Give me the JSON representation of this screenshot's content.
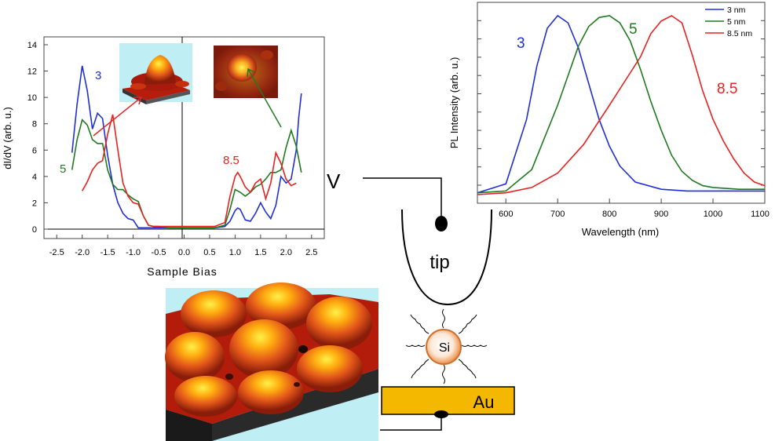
{
  "colors": {
    "blue": "#1f2fd6",
    "green": "#1f7a1f",
    "red": "#e8211f",
    "gold": "#f5b800",
    "afm_bg": "#bfeef5"
  },
  "sts": {
    "ylabel": "dI/dV (arb. u.)",
    "xlabel": "Sample Bias",
    "yticks": [
      "0",
      "2",
      "4",
      "6",
      "8",
      "10",
      "12",
      "14"
    ],
    "xticks": [
      "-2.5",
      "-2.0",
      "-1.5",
      "-1.0",
      "-0.5",
      "0.0",
      "0.5",
      "1.0",
      "1.5",
      "2.0",
      "2.5"
    ],
    "labels": {
      "blue": "3",
      "green": "5",
      "red": "8.5"
    },
    "inset_left_icon": "afm-3d-dot-icon",
    "inset_right_icon": "afm-2d-dot-icon"
  },
  "pl": {
    "ylabel": "PL Intensity (arb. u.)",
    "xlabel": "Wavelength (nm)",
    "xticks": [
      "600",
      "700",
      "800",
      "900",
      "1000",
      "1100"
    ],
    "legend": [
      "3 nm",
      "5 nm",
      "8.5 nm"
    ],
    "labels": {
      "blue": "3",
      "green": "5",
      "red": "8.5"
    }
  },
  "schematic": {
    "v_label": "V",
    "tip_label": "tip",
    "si_label": "Si",
    "au_label": "Au"
  },
  "chart_data": [
    {
      "type": "line",
      "title": "",
      "xlabel": "Sample Bias",
      "ylabel": "dI/dV (arb. u.)",
      "xlim": [
        -2.75,
        2.75
      ],
      "ylim": [
        0,
        14
      ],
      "series": [
        {
          "name": "3",
          "color": "#1f2fd6",
          "x": [
            -2.2,
            -2.1,
            -2.0,
            -1.9,
            -1.8,
            -1.7,
            -1.6,
            -1.5,
            -1.4,
            -1.3,
            -1.2,
            -1.1,
            -1.0,
            -0.9,
            -0.8,
            -0.7,
            -0.6,
            -0.5,
            -0.3,
            0,
            0.3,
            0.6,
            0.8,
            0.9,
            1.0,
            1.05,
            1.1,
            1.2,
            1.3,
            1.4,
            1.5,
            1.6,
            1.7,
            1.8,
            1.9,
            2.0,
            2.1,
            2.2,
            2.25,
            2.3
          ],
          "y": [
            5.8,
            9.5,
            12.4,
            10.5,
            7.6,
            8.8,
            8.4,
            5.6,
            3.4,
            2.0,
            1.2,
            0.8,
            0.7,
            0.1,
            0.1,
            0.1,
            0.1,
            0.1,
            0.1,
            0.1,
            0.1,
            0.1,
            0.2,
            0.6,
            1.4,
            1.6,
            1.5,
            0.7,
            0.6,
            1.2,
            2.0,
            1.3,
            0.8,
            1.8,
            4.0,
            3.5,
            3.8,
            6.0,
            8.5,
            10.3
          ]
        },
        {
          "name": "5",
          "color": "#1f7a1f",
          "x": [
            -2.2,
            -2.1,
            -2.0,
            -1.9,
            -1.8,
            -1.7,
            -1.6,
            -1.5,
            -1.4,
            -1.3,
            -1.2,
            -1.1,
            -1.0,
            -0.9,
            -0.8,
            -0.7,
            -0.6,
            -0.5,
            -0.3,
            0,
            0.3,
            0.6,
            0.8,
            0.9,
            1.0,
            1.1,
            1.2,
            1.3,
            1.4,
            1.5,
            1.6,
            1.7,
            1.8,
            1.9,
            2.0,
            2.1,
            2.2,
            2.3
          ],
          "y": [
            4.5,
            6.8,
            8.3,
            7.9,
            6.8,
            6.5,
            6.5,
            4.5,
            3.4,
            3.0,
            3.0,
            2.6,
            2.3,
            2.1,
            1.0,
            0.3,
            0.2,
            0.2,
            0.1,
            0.1,
            0.1,
            0.1,
            0.3,
            1.5,
            3.0,
            2.8,
            2.5,
            2.8,
            3.2,
            3.4,
            3.8,
            4.3,
            4.3,
            4.5,
            6.2,
            7.5,
            6.3,
            4.3
          ]
        },
        {
          "name": "8.5",
          "color": "#e8211f",
          "x": [
            -2.0,
            -1.9,
            -1.8,
            -1.7,
            -1.6,
            -1.5,
            -1.4,
            -1.3,
            -1.2,
            -1.1,
            -1.0,
            -0.9,
            -0.8,
            -0.7,
            -0.6,
            -0.5,
            -0.3,
            0,
            0.3,
            0.6,
            0.8,
            0.9,
            1.0,
            1.05,
            1.1,
            1.2,
            1.3,
            1.4,
            1.5,
            1.6,
            1.7,
            1.8,
            1.9,
            2.0,
            2.1,
            2.2
          ],
          "y": [
            2.9,
            3.6,
            4.5,
            5.0,
            5.2,
            7.2,
            8.7,
            6.0,
            3.5,
            2.5,
            2.0,
            1.9,
            1.0,
            0.3,
            0.2,
            0.2,
            0.2,
            0.2,
            0.2,
            0.2,
            0.5,
            2.5,
            4.0,
            4.3,
            4.0,
            3.2,
            2.8,
            3.5,
            3.8,
            2.3,
            3.5,
            5.8,
            5.0,
            3.8,
            3.3,
            3.5
          ]
        }
      ]
    },
    {
      "type": "line",
      "title": "",
      "xlabel": "Wavelength (nm)",
      "ylabel": "PL Intensity (arb. u.)",
      "xlim": [
        545,
        1100
      ],
      "ylim": [
        0,
        1
      ],
      "legend": "top-right",
      "series": [
        {
          "name": "3 nm",
          "color": "#1f2fd6",
          "x": [
            545,
            600,
            640,
            660,
            680,
            700,
            720,
            740,
            760,
            780,
            800,
            820,
            850,
            900,
            950,
            1000,
            1050,
            1100
          ],
          "y": [
            0.01,
            0.06,
            0.42,
            0.72,
            0.93,
            1.0,
            0.96,
            0.82,
            0.62,
            0.42,
            0.27,
            0.16,
            0.07,
            0.03,
            0.02,
            0.02,
            0.02,
            0.02
          ]
        },
        {
          "name": "5 nm",
          "color": "#1f7a1f",
          "x": [
            545,
            600,
            650,
            700,
            740,
            760,
            780,
            800,
            820,
            840,
            860,
            880,
            900,
            920,
            940,
            960,
            980,
            1000,
            1050,
            1100
          ],
          "y": [
            0.01,
            0.02,
            0.14,
            0.5,
            0.83,
            0.94,
            0.99,
            1.0,
            0.96,
            0.86,
            0.7,
            0.52,
            0.36,
            0.22,
            0.13,
            0.08,
            0.05,
            0.04,
            0.03,
            0.03
          ]
        },
        {
          "name": "8.5 nm",
          "color": "#e8211f",
          "x": [
            545,
            600,
            650,
            700,
            750,
            800,
            840,
            860,
            880,
            900,
            920,
            940,
            960,
            980,
            1000,
            1020,
            1040,
            1060,
            1080,
            1100
          ],
          "y": [
            0.0,
            0.01,
            0.04,
            0.12,
            0.28,
            0.5,
            0.68,
            0.77,
            0.9,
            0.97,
            1.0,
            0.96,
            0.78,
            0.58,
            0.42,
            0.3,
            0.2,
            0.12,
            0.07,
            0.05
          ]
        }
      ]
    }
  ]
}
